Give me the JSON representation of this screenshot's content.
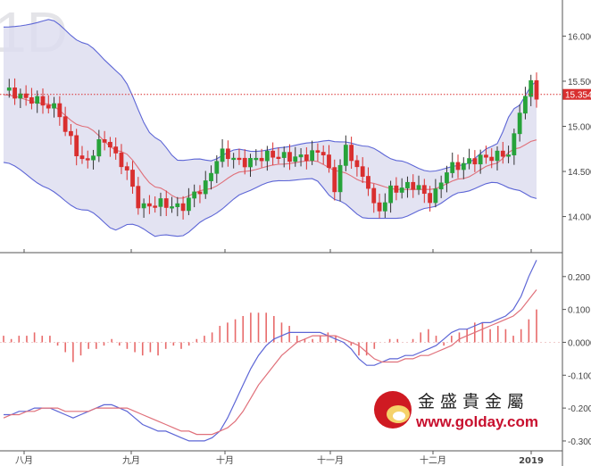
{
  "watermark": "1D",
  "logo": {
    "name": "金盛貴金屬",
    "url": "www.golday.com"
  },
  "chart_data": [
    {
      "type": "candlestick",
      "title": "",
      "overlays": [
        "bollinger-upper",
        "bollinger-middle",
        "bollinger-lower",
        "moving-average"
      ],
      "ylim": [
        13.6,
        16.4
      ],
      "y_ticks": [
        "16.000",
        "15.500",
        "15.000",
        "14.500",
        "14.000"
      ],
      "current_price": 15.354,
      "current_price_label": "15.354",
      "x_labels": [
        "八月",
        "九月",
        "十月",
        "十一月",
        "十二月",
        "2019"
      ],
      "ohlc": [],
      "legend": "none"
    },
    {
      "type": "macd",
      "ylim": [
        -0.33,
        0.27
      ],
      "y_ticks": [
        "0.200",
        "0.100",
        "0.0000",
        "-0.100",
        "-0.200",
        "-0.300"
      ],
      "series": [
        {
          "values": [
            -0.22,
            -0.22,
            -0.21,
            -0.21,
            -0.2,
            -0.2,
            -0.2,
            -0.21,
            -0.22,
            -0.23,
            -0.22,
            -0.21,
            -0.2,
            -0.19,
            -0.19,
            -0.2,
            -0.21,
            -0.23,
            -0.25,
            -0.26,
            -0.27,
            -0.27,
            -0.28,
            -0.29,
            -0.3,
            -0.3,
            -0.3,
            -0.29,
            -0.27,
            -0.23,
            -0.18,
            -0.13,
            -0.08,
            -0.04,
            -0.01,
            0.01,
            0.02,
            0.03,
            0.03,
            0.03,
            0.03,
            0.03,
            0.02,
            0.01,
            0.0,
            -0.02,
            -0.05,
            -0.07,
            -0.07,
            -0.06,
            -0.05,
            -0.05,
            -0.04,
            -0.04,
            -0.03,
            -0.02,
            -0.01,
            0.01,
            0.03,
            0.04,
            0.04,
            0.05,
            0.06,
            0.06,
            0.07,
            0.08,
            0.1,
            0.14,
            0.2,
            0.25
          ]
        },
        {
          "values": [
            -0.23,
            -0.22,
            -0.22,
            -0.21,
            -0.21,
            -0.2,
            -0.2,
            -0.2,
            -0.21,
            -0.21,
            -0.21,
            -0.21,
            -0.2,
            -0.2,
            -0.2,
            -0.2,
            -0.2,
            -0.21,
            -0.22,
            -0.23,
            -0.24,
            -0.25,
            -0.26,
            -0.27,
            -0.27,
            -0.28,
            -0.28,
            -0.28,
            -0.27,
            -0.26,
            -0.24,
            -0.21,
            -0.17,
            -0.13,
            -0.1,
            -0.07,
            -0.04,
            -0.02,
            0.0,
            0.01,
            0.02,
            0.02,
            0.02,
            0.02,
            0.01,
            0.0,
            -0.01,
            -0.03,
            -0.05,
            -0.06,
            -0.06,
            -0.06,
            -0.05,
            -0.05,
            -0.04,
            -0.04,
            -0.03,
            -0.02,
            -0.01,
            0.01,
            0.02,
            0.03,
            0.04,
            0.05,
            0.06,
            0.07,
            0.08,
            0.1,
            0.13,
            0.16
          ]
        }
      ],
      "histogram": [
        0.02,
        0.01,
        0.02,
        0.02,
        0.03,
        0.02,
        0.02,
        -0.01,
        -0.03,
        -0.06,
        -0.04,
        -0.02,
        -0.02,
        -0.01,
        0.01,
        -0.01,
        -0.02,
        -0.03,
        -0.04,
        -0.03,
        -0.04,
        -0.02,
        -0.01,
        -0.02,
        -0.01,
        0.01,
        0.02,
        0.03,
        0.05,
        0.06,
        0.07,
        0.08,
        0.09,
        0.09,
        0.09,
        0.08,
        0.06,
        0.05,
        0.02,
        0.01,
        0.01,
        0.02,
        0.03,
        0.02,
        0.0,
        -0.01,
        -0.04,
        -0.04,
        -0.02,
        0.0,
        0.01,
        0.01,
        0.0,
        0.01,
        0.03,
        0.04,
        0.02,
        -0.01,
        0.02,
        0.03,
        0.04,
        0.06,
        0.06,
        0.04,
        0.05,
        0.04,
        0.02,
        0.04,
        0.07,
        0.1
      ]
    }
  ]
}
